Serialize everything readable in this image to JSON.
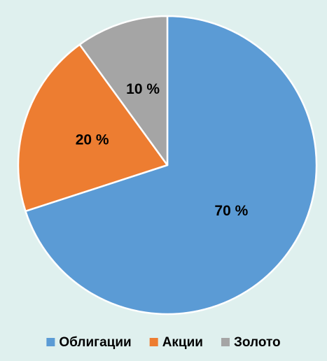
{
  "chart_data": {
    "type": "pie",
    "categories": [
      "Облигации",
      "Акции",
      "Золото"
    ],
    "values": [
      70,
      20,
      10
    ],
    "value_labels": [
      "70 %",
      "20 %",
      "10 %"
    ],
    "colors": [
      "#5b9bd5",
      "#ed7d31",
      "#a5a5a5"
    ],
    "legend": "bottom"
  }
}
